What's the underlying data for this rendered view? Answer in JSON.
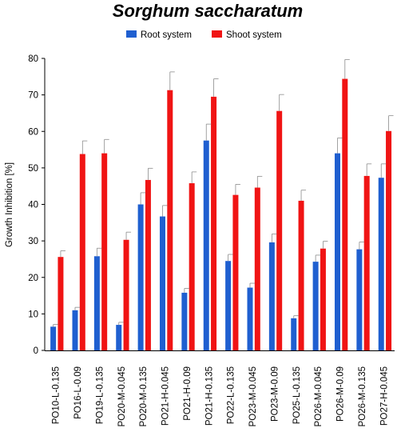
{
  "chart_data": {
    "type": "bar",
    "title": "Sorghum saccharatum",
    "ylabel": "Growth Inhibition [%]",
    "xlabel": "",
    "ylim": [
      0,
      80
    ],
    "yticks": [
      0,
      10,
      20,
      30,
      40,
      50,
      60,
      70,
      80
    ],
    "grid": false,
    "legend_position": "top-center",
    "categories": [
      "PO10-L-0.135",
      "PO16-L-0.09",
      "PO19-L-0.135",
      "PO20-M-0.045",
      "PO20-M-0.135",
      "PO21-H-0.045",
      "PO21-H-0.09",
      "PO21-H-0.135",
      "PO22-L-0.135",
      "PO23-M-0.045",
      "PO23-M-0.09",
      "PO25-L-0.135",
      "PO26-M-0.045",
      "PO26-M-0.09",
      "PO26-M-0.135",
      "PO27-H-0.045"
    ],
    "series": [
      {
        "name": "Root system",
        "color": "#1f5fd0",
        "values": [
          6.5,
          11.0,
          25.8,
          7.0,
          40.0,
          36.7,
          15.8,
          57.5,
          24.5,
          17.2,
          29.6,
          8.8,
          24.3,
          54.0,
          27.7,
          47.3
        ],
        "errors": [
          0.6,
          0.8,
          2.2,
          0.7,
          3.2,
          3.0,
          1.2,
          4.5,
          1.8,
          1.2,
          2.3,
          0.7,
          1.8,
          4.2,
          2.0,
          3.8
        ]
      },
      {
        "name": "Shoot system",
        "color": "#f01414",
        "values": [
          25.6,
          53.8,
          54.0,
          30.3,
          46.7,
          71.3,
          45.8,
          69.5,
          42.6,
          44.6,
          65.6,
          41.0,
          27.9,
          74.4,
          47.8,
          60.1
        ],
        "errors": [
          1.7,
          3.6,
          3.8,
          2.1,
          3.2,
          5.0,
          3.1,
          4.9,
          2.9,
          3.1,
          4.5,
          2.9,
          2.0,
          5.3,
          3.3,
          4.2
        ]
      }
    ]
  }
}
